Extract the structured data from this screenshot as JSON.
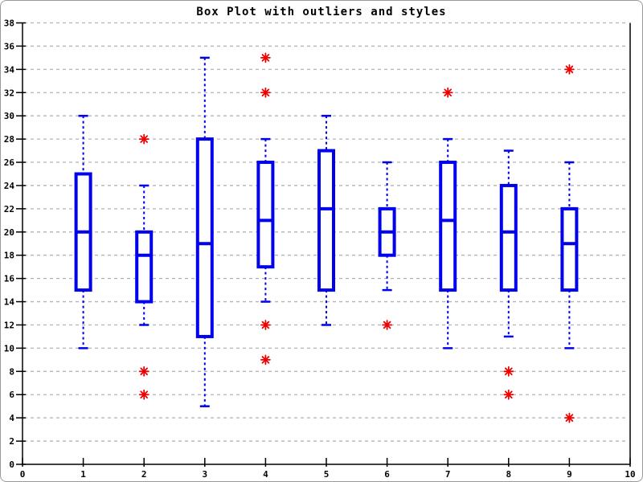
{
  "chart_data": {
    "type": "boxplot",
    "title": "Box Plot with outliers and styles",
    "xlabel": "",
    "ylabel": "",
    "xlim": [
      0,
      10
    ],
    "ylim": [
      0,
      38
    ],
    "x_ticks": [
      0,
      1,
      2,
      3,
      4,
      5,
      6,
      7,
      8,
      9,
      10
    ],
    "y_ticks": [
      0,
      2,
      4,
      6,
      8,
      10,
      12,
      14,
      16,
      18,
      20,
      22,
      24,
      26,
      28,
      30,
      32,
      34,
      36,
      38
    ],
    "grid": "horizontal dashed",
    "legend": "none",
    "colors": {
      "box": "#0000ee",
      "outlier": "#ee0000",
      "grid": "#b3b3b3",
      "axis": "#000000",
      "background": "#ffffff"
    },
    "series": [
      {
        "x": 1,
        "whisker_low": 10,
        "q1": 15,
        "median": 20,
        "q3": 25,
        "whisker_high": 30,
        "outliers": []
      },
      {
        "x": 2,
        "whisker_low": 12,
        "q1": 14,
        "median": 18,
        "q3": 20,
        "whisker_high": 24,
        "outliers": [
          28,
          8,
          6
        ]
      },
      {
        "x": 3,
        "whisker_low": 5,
        "q1": 11,
        "median": 19,
        "q3": 28,
        "whisker_high": 35,
        "outliers": []
      },
      {
        "x": 4,
        "whisker_low": 14,
        "q1": 17,
        "median": 21,
        "q3": 26,
        "whisker_high": 28,
        "outliers": [
          35,
          32,
          12,
          9
        ]
      },
      {
        "x": 5,
        "whisker_low": 12,
        "q1": 15,
        "median": 22,
        "q3": 27,
        "whisker_high": 30,
        "outliers": []
      },
      {
        "x": 6,
        "whisker_low": 15,
        "q1": 18,
        "median": 20,
        "q3": 22,
        "whisker_high": 26,
        "outliers": [
          12
        ]
      },
      {
        "x": 7,
        "whisker_low": 10,
        "q1": 15,
        "median": 21,
        "q3": 26,
        "whisker_high": 28,
        "outliers": [
          32
        ]
      },
      {
        "x": 8,
        "whisker_low": 11,
        "q1": 15,
        "median": 20,
        "q3": 24,
        "whisker_high": 27,
        "outliers": [
          8,
          6
        ]
      },
      {
        "x": 9,
        "whisker_low": 10,
        "q1": 15,
        "median": 19,
        "q3": 22,
        "whisker_high": 26,
        "outliers": [
          34,
          4
        ]
      }
    ]
  }
}
